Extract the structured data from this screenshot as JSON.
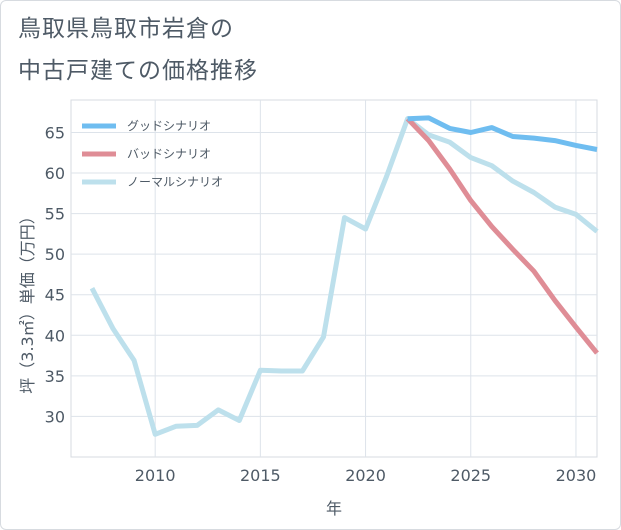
{
  "title": {
    "line1": "鳥取県鳥取市岩倉の",
    "line2": "中古戸建ての価格推移"
  },
  "chart_data": {
    "type": "line",
    "xlabel": "年",
    "ylabel": "坪（3.3㎡）単価（万円）",
    "xlim": [
      2006,
      2031
    ],
    "ylim": [
      25,
      69
    ],
    "xticks": [
      2010,
      2015,
      2020,
      2025,
      2030
    ],
    "yticks": [
      30,
      35,
      40,
      45,
      50,
      55,
      60,
      65
    ],
    "grid": true,
    "legend_position": "top-left",
    "series": [
      {
        "name": "グッドシナリオ",
        "color": "#6fbdf0",
        "x": [
          2022,
          2023,
          2024,
          2025,
          2026,
          2027,
          2028,
          2029,
          2030,
          2031
        ],
        "values": [
          66.7,
          66.8,
          65.5,
          65.0,
          65.6,
          64.5,
          64.3,
          64.0,
          63.4,
          62.9
        ]
      },
      {
        "name": "バッドシナリオ",
        "color": "#df8d96",
        "x": [
          2022,
          2023,
          2024,
          2025,
          2026,
          2027,
          2028,
          2029,
          2030,
          2031
        ],
        "values": [
          66.7,
          64.0,
          60.5,
          56.6,
          53.4,
          50.6,
          47.9,
          44.3,
          41.0,
          37.8
        ]
      },
      {
        "name": "ノーマルシナリオ",
        "color": "#bde0ec",
        "x": [
          2007,
          2008,
          2009,
          2010,
          2011,
          2012,
          2013,
          2014,
          2015,
          2016,
          2017,
          2018,
          2019,
          2020,
          2021,
          2022,
          2023,
          2024,
          2025,
          2026,
          2027,
          2028,
          2029,
          2030,
          2031
        ],
        "values": [
          45.8,
          40.8,
          36.9,
          27.8,
          28.8,
          28.9,
          30.8,
          29.5,
          35.7,
          35.6,
          35.6,
          39.8,
          54.5,
          53.1,
          59.6,
          66.7,
          64.7,
          63.8,
          61.9,
          60.9,
          59.0,
          57.6,
          55.8,
          54.9,
          52.8
        ]
      }
    ]
  }
}
